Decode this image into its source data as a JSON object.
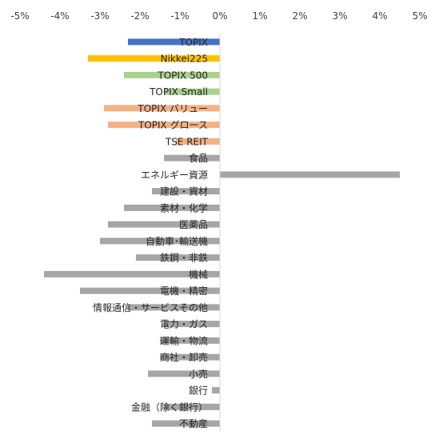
{
  "chart_data": {
    "type": "bar",
    "orientation": "horizontal",
    "title": "",
    "xlabel": "",
    "ylabel": "",
    "xlim": [
      -5,
      5
    ],
    "x_ticks": [
      "-5%",
      "-4%",
      "-3%",
      "-2%",
      "-1%",
      "0%",
      "1%",
      "2%",
      "3%",
      "4%",
      "5%"
    ],
    "axis_position": "top",
    "grid": false,
    "legend": "none",
    "colors": {
      "index": "#4472c4",
      "nikkei": "#ffc000",
      "size": "#a9d18e",
      "style": "#f4b183",
      "sector": "#a6a6a6"
    },
    "categories": [
      "TOPIX",
      "Nikkei225",
      "TOPIX 500",
      "TOPIX Small",
      "TOPIX バリュー",
      "TOPIX グロース",
      "TSE REIT",
      "食品",
      "エネルギー資源",
      "建設・資材",
      "素材・化学",
      "医薬品",
      "自動車･輸送機",
      "鉄鋼・非鉄",
      "機械",
      "電機・精密",
      "情報通信・サービスその他",
      "電力・ガス",
      "運輸・物流",
      "商社・卸売",
      "小売",
      "銀行",
      "金融（除く銀行）",
      "不動産"
    ],
    "values": [
      -2.3,
      -3.3,
      -2.4,
      -1.4,
      -2.9,
      -2.8,
      -1.1,
      -1.4,
      4.5,
      -1.7,
      -2.4,
      -2.8,
      -3.0,
      -2.1,
      -4.4,
      -3.5,
      -2.3,
      -1.4,
      -1.5,
      -1.5,
      -1.8,
      -0.2,
      -1.4,
      -1.7
    ],
    "bar_colors": [
      "#4472c4",
      "#ffc000",
      "#a9d18e",
      "#a9d18e",
      "#f4b183",
      "#f4b183",
      "#f4b183",
      "#a6a6a6",
      "#a6a6a6",
      "#a6a6a6",
      "#a6a6a6",
      "#a6a6a6",
      "#a6a6a6",
      "#a6a6a6",
      "#a6a6a6",
      "#a6a6a6",
      "#a6a6a6",
      "#a6a6a6",
      "#a6a6a6",
      "#a6a6a6",
      "#a6a6a6",
      "#a6a6a6",
      "#a6a6a6",
      "#a6a6a6"
    ]
  }
}
